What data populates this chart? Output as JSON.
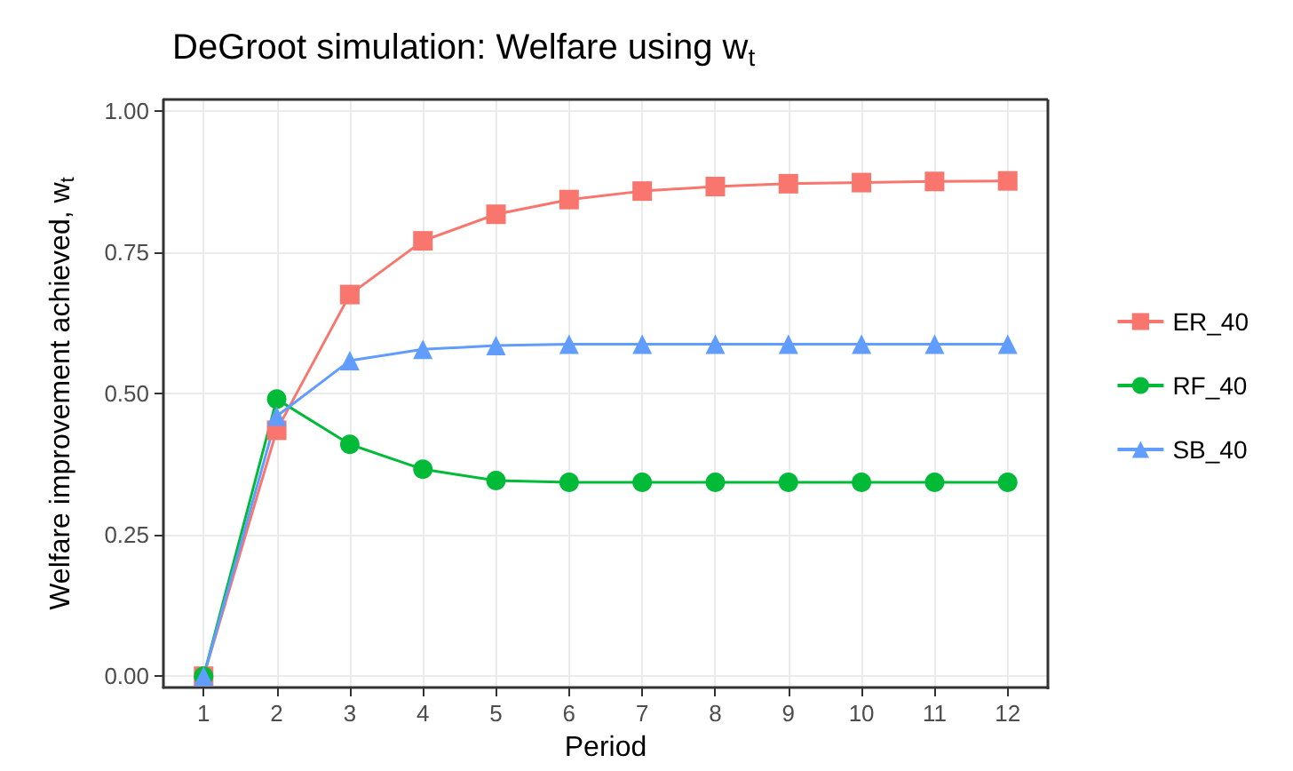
{
  "chart_data": {
    "type": "line",
    "title": "DeGroot simulation: Welfare using w$_{t}$",
    "xlabel": "Period",
    "ylabel": "Welfare improvement achieved, w$_{t}$",
    "x": [
      1,
      2,
      3,
      4,
      5,
      6,
      7,
      8,
      9,
      10,
      11,
      12
    ],
    "series": [
      {
        "name": "ER_40",
        "color": "#f8766d",
        "marker": "square",
        "values": [
          0,
          0.435,
          0.675,
          0.77,
          0.817,
          0.843,
          0.858,
          0.866,
          0.871,
          0.873,
          0.875,
          0.876
        ]
      },
      {
        "name": "RF_40",
        "color": "#00ba38",
        "marker": "circle",
        "values": [
          0,
          0.49,
          0.41,
          0.366,
          0.346,
          0.343,
          0.343,
          0.343,
          0.343,
          0.343,
          0.343,
          0.343
        ]
      },
      {
        "name": "SB_40",
        "color": "#619cff",
        "marker": "triangle",
        "values": [
          0,
          0.46,
          0.558,
          0.578,
          0.585,
          0.587,
          0.587,
          0.587,
          0.587,
          0.587,
          0.587,
          0.587
        ]
      }
    ],
    "xlim": [
      0.45,
      12.55
    ],
    "xticks": [
      1,
      2,
      3,
      4,
      5,
      6,
      7,
      8,
      9,
      10,
      11,
      12
    ],
    "ylim": [
      -0.02,
      1.02
    ],
    "yticks": [
      {
        "value": 0,
        "label": "0.00"
      },
      {
        "value": 0.25,
        "label": "0.25"
      },
      {
        "value": 0.5,
        "label": "0.50"
      },
      {
        "value": 0.75,
        "label": "0.75"
      },
      {
        "value": 1,
        "label": "1.00"
      }
    ],
    "grid": true,
    "legend": "right"
  }
}
